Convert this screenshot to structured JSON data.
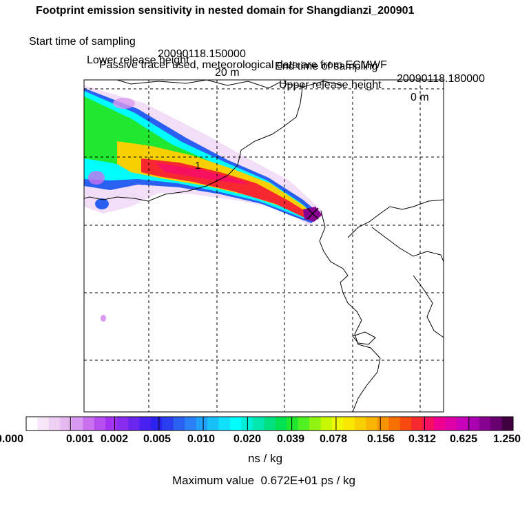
{
  "header": {
    "title": "Footprint emission sensitivity in nested domain for Shangdianzi_200901",
    "start_label": "Start time of sampling",
    "start_value": "20090118.150000",
    "end_label": "End time of sampling",
    "end_value": "20090118.180000",
    "lower_label": "Lower release height",
    "lower_value": "20 m",
    "upper_label": "Upper release height",
    "upper_value": "0 m",
    "tracer_line": "Passive tracer used, meteorological data are from ECMWF"
  },
  "map": {
    "contour_label": "1",
    "site_marker": "release-site-x"
  },
  "colorbar": {
    "tick_labels": [
      "0.000",
      "0.001",
      "0.002",
      "0.005",
      "0.010",
      "0.020",
      "0.039",
      "0.078",
      "0.156",
      "0.312",
      "0.625",
      "1.250"
    ],
    "colors": [
      "#ffffff",
      "#f6e6f8",
      "#eed0f4",
      "#e6b8f0",
      "#d899ee",
      "#c870ee",
      "#b64ef0",
      "#a432f2",
      "#8a2cf0",
      "#6a26f0",
      "#4a20f0",
      "#2c22f0",
      "#2a40f0",
      "#2a60f2",
      "#2a80f4",
      "#20a0f6",
      "#18c0f8",
      "#10e0fa",
      "#00fcfc",
      "#00f0d8",
      "#00e8b0",
      "#00e080",
      "#00e050",
      "#20e830",
      "#50f020",
      "#90f410",
      "#c8f800",
      "#f0f800",
      "#f8e800",
      "#f8d000",
      "#f8b400",
      "#f89400",
      "#f87000",
      "#f84a10",
      "#f82830",
      "#f81060",
      "#f00090",
      "#e000a8",
      "#c800b8",
      "#a800b0",
      "#880090",
      "#680070",
      "#400040"
    ],
    "units": "ns / kg",
    "max_label": "Maximum value",
    "max_value": "0.672E+01 ps / kg"
  }
}
